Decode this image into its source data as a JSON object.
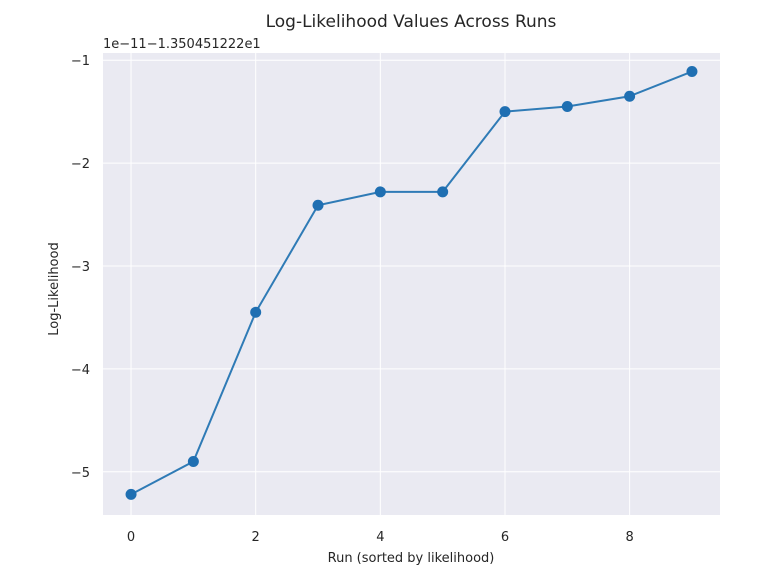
{
  "chart_data": {
    "type": "line",
    "title": "Log-Likelihood Values Across Runs",
    "offset_text": "1e−11−1.350451222e1",
    "xlabel": "Run (sorted by likelihood)",
    "ylabel": "Log-Likelihood",
    "x": [
      0,
      1,
      2,
      3,
      4,
      5,
      6,
      7,
      8,
      9
    ],
    "y": [
      -5.22,
      -4.9,
      -3.45,
      -2.41,
      -2.28,
      -2.28,
      -1.5,
      -1.45,
      -1.35,
      -1.11
    ],
    "xlim": [
      -0.45,
      9.45
    ],
    "ylim": [
      -5.42,
      -0.93
    ],
    "xticks": [
      0,
      2,
      4,
      6,
      8
    ],
    "xtick_labels": [
      "0",
      "2",
      "4",
      "6",
      "8"
    ],
    "yticks": [
      -5,
      -4,
      -3,
      -2,
      -1
    ],
    "ytick_labels": [
      "−5",
      "−4",
      "−3",
      "−2",
      "−1"
    ],
    "grid": true,
    "colors": {
      "line": "#2f7bb6",
      "marker": "#1f6fb2",
      "plot_bg": "#eaeaf2",
      "grid": "#ffffff"
    }
  }
}
